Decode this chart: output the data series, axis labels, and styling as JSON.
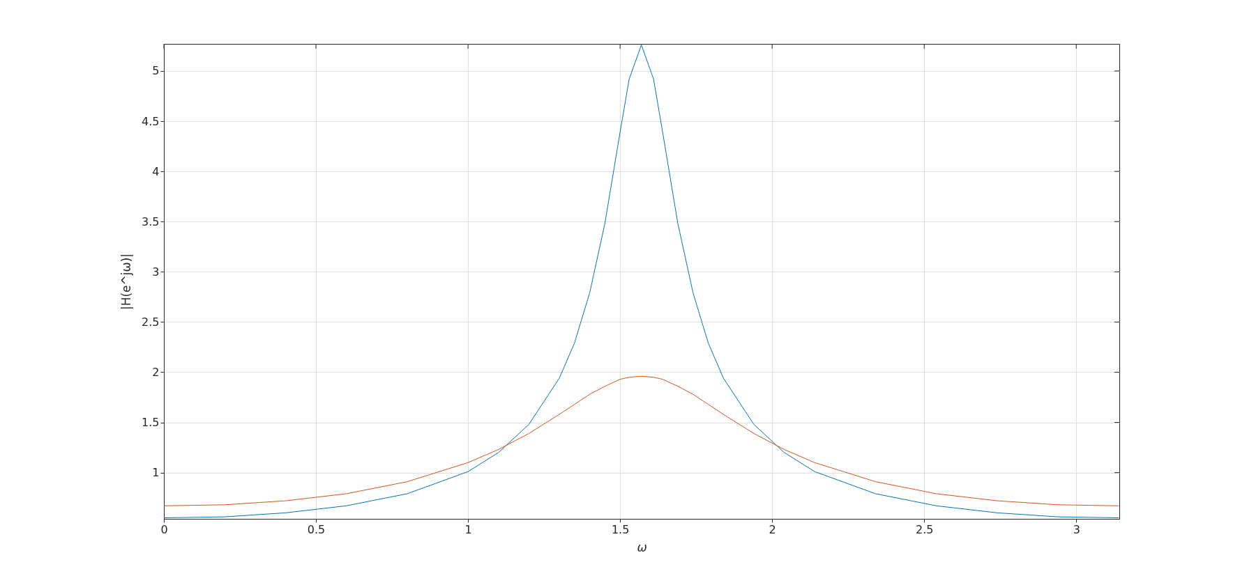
{
  "chart_data": {
    "type": "line",
    "xlabel": "ω",
    "ylabel": "|H(e^jω)|",
    "x": [
      0,
      0.2,
      0.4,
      0.6,
      0.8,
      1.0,
      1.1,
      1.2,
      1.3,
      1.35,
      1.4,
      1.45,
      1.5,
      1.53,
      1.57,
      1.61,
      1.64,
      1.69,
      1.74,
      1.79,
      1.84,
      1.94,
      2.04,
      2.14,
      2.34,
      2.54,
      2.74,
      2.94,
      3.14
    ],
    "series": [
      {
        "color": "#0072bd",
        "values": [
          0.55,
          0.56,
          0.6,
          0.67,
          0.79,
          1.01,
          1.2,
          1.48,
          1.94,
          2.29,
          2.79,
          3.48,
          4.39,
          4.92,
          5.26,
          4.92,
          4.39,
          3.48,
          2.79,
          2.29,
          1.94,
          1.48,
          1.2,
          1.01,
          0.79,
          0.67,
          0.6,
          0.56,
          0.55
        ]
      },
      {
        "color": "#d95319",
        "values": [
          0.67,
          0.68,
          0.72,
          0.79,
          0.91,
          1.1,
          1.23,
          1.39,
          1.58,
          1.68,
          1.78,
          1.86,
          1.93,
          1.95,
          1.96,
          1.95,
          1.93,
          1.86,
          1.78,
          1.68,
          1.58,
          1.39,
          1.23,
          1.1,
          0.91,
          0.79,
          0.72,
          0.68,
          0.67
        ]
      }
    ],
    "xlim": [
      0,
      3.1416
    ],
    "ylim": [
      0.54,
      5.27
    ],
    "xticks": [
      0,
      0.5,
      1,
      1.5,
      2,
      2.5,
      3
    ],
    "yticks": [
      1,
      1.5,
      2,
      2.5,
      3,
      3.5,
      4,
      4.5,
      5
    ],
    "grid": true,
    "legend": false,
    "marker": "none",
    "line_style": "solid"
  }
}
